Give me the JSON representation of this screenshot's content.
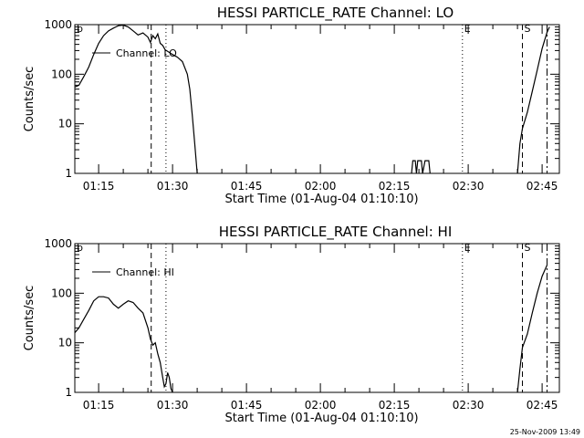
{
  "page": {
    "footer_timestamp": "25-Nov-2009 13:49"
  },
  "chart_data": [
    {
      "type": "line",
      "title": "HESSI PARTICLE_RATE Channel: LO",
      "xlabel": "Start Time (01-Aug-04 01:10:10)",
      "ylabel": "Counts/sec",
      "yscale": "log",
      "ylim": [
        1,
        1000
      ],
      "xlim": [
        "01:10:10",
        "02:48:30"
      ],
      "xticks": [
        "01:15",
        "01:30",
        "01:45",
        "02:00",
        "02:15",
        "02:30",
        "02:45"
      ],
      "yticks": [
        "1",
        "10",
        "100",
        "1000"
      ],
      "grid": false,
      "legend_position": "top-left",
      "series": [
        {
          "name": "Channel: LO",
          "segments": [
            [
              [
                "01:10:10",
                55
              ],
              [
                "01:11:00",
                60
              ],
              [
                "01:12:00",
                90
              ],
              [
                "01:13:00",
                140
              ],
              [
                "01:14:00",
                250
              ],
              [
                "01:15:00",
                420
              ],
              [
                "01:16:00",
                600
              ],
              [
                "01:17:00",
                750
              ],
              [
                "01:18:00",
                850
              ],
              [
                "01:19:00",
                950
              ],
              [
                "01:20:00",
                980
              ],
              [
                "01:21:00",
                900
              ],
              [
                "01:22:00",
                750
              ],
              [
                "01:23:00",
                620
              ],
              [
                "01:24:00",
                680
              ],
              [
                "01:25:00",
                560
              ],
              [
                "01:25:30",
                440
              ],
              [
                "01:26:00",
                600
              ],
              [
                "01:26:30",
                520
              ],
              [
                "01:27:00",
                650
              ],
              [
                "01:27:30",
                420
              ],
              [
                "01:28:00",
                380
              ],
              [
                "01:28:30",
                310
              ],
              [
                "01:29:00",
                290
              ],
              [
                "01:30:00",
                250
              ],
              [
                "01:31:00",
                220
              ],
              [
                "01:32:00",
                180
              ],
              [
                "01:33:00",
                100
              ],
              [
                "01:33:30",
                50
              ],
              [
                "01:34:00",
                15
              ],
              [
                "01:34:30",
                4
              ],
              [
                "01:35:00",
                1
              ]
            ],
            [
              [
                "02:18:30",
                1
              ],
              [
                "02:18:45",
                1.8
              ],
              [
                "02:19:15",
                1.8
              ],
              [
                "02:19:30",
                1
              ],
              [
                "02:19:45",
                1.8
              ],
              [
                "02:20:30",
                1.8
              ],
              [
                "02:20:45",
                1
              ],
              [
                "02:21:15",
                1.8
              ],
              [
                "02:22:00",
                1.8
              ],
              [
                "02:22:15",
                1
              ]
            ],
            [
              [
                "02:40:00",
                1
              ],
              [
                "02:40:30",
                4
              ],
              [
                "02:41:00",
                8
              ],
              [
                "02:42:00",
                17
              ],
              [
                "02:43:00",
                45
              ],
              [
                "02:44:00",
                120
              ],
              [
                "02:45:00",
                330
              ],
              [
                "02:46:00",
                700
              ],
              [
                "02:46:30",
                900
              ]
            ]
          ]
        }
      ],
      "markers": [
        {
          "label": "b",
          "time": "01:10:10",
          "style": "none"
        },
        {
          "label": "",
          "time": "01:25:40",
          "style": "dashed"
        },
        {
          "label": "",
          "time": "01:28:40",
          "style": "dotted"
        },
        {
          "label": "E",
          "time": "02:28:50",
          "style": "dotted"
        },
        {
          "label": "S",
          "time": "02:41:00",
          "style": "dashed"
        },
        {
          "label": "",
          "time": "02:46:00",
          "style": "dashdot"
        }
      ]
    },
    {
      "type": "line",
      "title": "HESSI PARTICLE_RATE Channel: HI",
      "xlabel": "Start Time (01-Aug-04 01:10:10)",
      "ylabel": "Counts/sec",
      "yscale": "log",
      "ylim": [
        1,
        1000
      ],
      "xlim": [
        "01:10:10",
        "02:48:30"
      ],
      "xticks": [
        "01:15",
        "01:30",
        "01:45",
        "02:00",
        "02:15",
        "02:30",
        "02:45"
      ],
      "yticks": [
        "1",
        "10",
        "100",
        "1000"
      ],
      "grid": false,
      "legend_position": "top-left",
      "series": [
        {
          "name": "Channel: HI",
          "segments": [
            [
              [
                "01:10:10",
                16
              ],
              [
                "01:11:00",
                20
              ],
              [
                "01:12:00",
                30
              ],
              [
                "01:13:00",
                45
              ],
              [
                "01:14:00",
                70
              ],
              [
                "01:15:00",
                85
              ],
              [
                "01:16:00",
                85
              ],
              [
                "01:17:00",
                80
              ],
              [
                "01:18:00",
                60
              ],
              [
                "01:19:00",
                50
              ],
              [
                "01:20:00",
                60
              ],
              [
                "01:21:00",
                70
              ],
              [
                "01:22:00",
                65
              ],
              [
                "01:23:00",
                50
              ],
              [
                "01:24:00",
                40
              ],
              [
                "01:25:00",
                20
              ],
              [
                "01:25:30",
                12
              ],
              [
                "01:26:00",
                9
              ],
              [
                "01:26:30",
                10
              ],
              [
                "01:27:00",
                6
              ],
              [
                "01:27:30",
                4
              ],
              [
                "01:28:00",
                2
              ],
              [
                "01:28:20",
                1.3
              ],
              [
                "01:28:40",
                1.5
              ],
              [
                "01:29:00",
                2.5
              ],
              [
                "01:29:20",
                2
              ],
              [
                "01:29:40",
                1.2
              ],
              [
                "01:30:00",
                1
              ]
            ],
            [
              [
                "02:40:00",
                1
              ],
              [
                "02:40:30",
                3
              ],
              [
                "02:41:00",
                8
              ],
              [
                "02:42:00",
                15
              ],
              [
                "02:43:00",
                40
              ],
              [
                "02:44:00",
                100
              ],
              [
                "02:45:00",
                220
              ],
              [
                "02:46:00",
                370
              ]
            ]
          ]
        }
      ],
      "markers": [
        {
          "label": "b",
          "time": "01:10:10",
          "style": "none"
        },
        {
          "label": "",
          "time": "01:25:40",
          "style": "dashed"
        },
        {
          "label": "",
          "time": "01:28:40",
          "style": "dotted"
        },
        {
          "label": "E",
          "time": "02:28:50",
          "style": "dotted"
        },
        {
          "label": "S",
          "time": "02:41:00",
          "style": "dashed"
        },
        {
          "label": "",
          "time": "02:46:00",
          "style": "dashdot"
        }
      ]
    }
  ]
}
